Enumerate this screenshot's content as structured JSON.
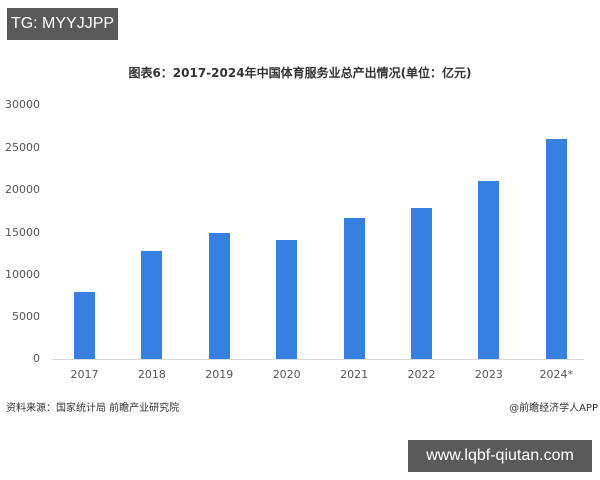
{
  "overlay": {
    "tag_label": "TG: MYYJJPP",
    "url_label": "www.lqbf-qiutan.com"
  },
  "chart_data": {
    "type": "bar",
    "title": "图表6：2017-2024年中国体育服务业总产出情况(单位：亿元)",
    "xlabel": "",
    "ylabel": "",
    "categories": [
      "2017",
      "2018",
      "2019",
      "2020",
      "2021",
      "2022",
      "2023",
      "2024*"
    ],
    "values": [
      7900,
      12700,
      14900,
      14100,
      16600,
      17800,
      21000,
      26000
    ],
    "ylim": [
      0,
      30000
    ],
    "yticks": [
      "30000",
      "25000",
      "20000",
      "15000",
      "10000",
      "5000",
      "0"
    ],
    "grid": false,
    "legend": null,
    "bar_color": "#3580e0",
    "source": "资料来源：国家统计局 前瞻产业研究院",
    "credit": "@前瞻经济学人APP"
  }
}
